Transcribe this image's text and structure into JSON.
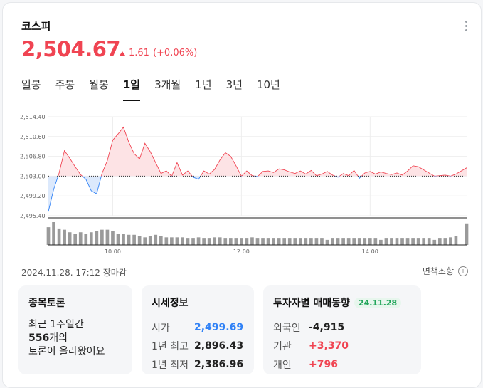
{
  "header": {
    "title": "코스피"
  },
  "quote": {
    "price": "2,504.67",
    "change": "1.61",
    "change_pct": "(+0.06%)"
  },
  "tabs": [
    "일봉",
    "주봉",
    "월봉",
    "1일",
    "3개월",
    "1년",
    "3년",
    "10년"
  ],
  "active_tab": "1일",
  "chart_data": {
    "type": "line",
    "y_ticks": [
      "2,514.40",
      "2,510.60",
      "2,506.80",
      "2,503.00",
      "2,499.20",
      "2,495.40"
    ],
    "x_ticks": [
      "10:00",
      "12:00",
      "14:00"
    ],
    "ylim": [
      2495.4,
      2514.4
    ],
    "reference": 2503.0,
    "x": [
      "09:00",
      "09:05",
      "09:10",
      "09:15",
      "09:20",
      "09:25",
      "09:30",
      "09:35",
      "09:40",
      "09:45",
      "09:50",
      "09:55",
      "10:00",
      "10:05",
      "10:10",
      "10:15",
      "10:20",
      "10:25",
      "10:30",
      "10:35",
      "10:40",
      "10:45",
      "10:50",
      "10:55",
      "11:00",
      "11:05",
      "11:10",
      "11:15",
      "11:20",
      "11:25",
      "11:30",
      "11:35",
      "11:40",
      "11:45",
      "11:50",
      "11:55",
      "12:00",
      "12:05",
      "12:10",
      "12:15",
      "12:20",
      "12:25",
      "12:30",
      "12:35",
      "12:40",
      "12:45",
      "12:50",
      "12:55",
      "13:00",
      "13:05",
      "13:10",
      "13:15",
      "13:20",
      "13:25",
      "13:30",
      "13:35",
      "13:40",
      "13:45",
      "13:50",
      "13:55",
      "14:00",
      "14:05",
      "14:10",
      "14:15",
      "14:20",
      "14:25",
      "14:30",
      "14:35",
      "14:40",
      "14:45",
      "14:50",
      "14:55",
      "15:00",
      "15:05",
      "15:10",
      "15:15",
      "15:20",
      "15:30"
    ],
    "values": [
      2496.2,
      2500.5,
      2503.6,
      2507.9,
      2506.4,
      2504.8,
      2503.3,
      2502.4,
      2500.2,
      2499.6,
      2503.5,
      2506.0,
      2509.9,
      2511.1,
      2512.4,
      2509.5,
      2507.3,
      2506.3,
      2509.3,
      2507.7,
      2505.6,
      2503.5,
      2504.0,
      2503.0,
      2505.6,
      2503.2,
      2504.0,
      2502.8,
      2502.4,
      2504.0,
      2503.4,
      2504.3,
      2506.1,
      2507.5,
      2506.8,
      2505.0,
      2503.0,
      2504.0,
      2503.1,
      2502.9,
      2503.9,
      2504.0,
      2503.7,
      2504.4,
      2504.2,
      2503.8,
      2503.5,
      2504.0,
      2503.4,
      2504.1,
      2503.1,
      2503.4,
      2503.9,
      2503.2,
      2502.8,
      2503.5,
      2503.1,
      2504.1,
      2502.6,
      2503.6,
      2503.9,
      2503.4,
      2503.8,
      2503.5,
      2503.3,
      2503.6,
      2503.2,
      2504.0,
      2505.0,
      2504.8,
      2504.2,
      2503.6,
      2503.0,
      2503.1,
      2503.2,
      2503.0,
      2503.4,
      2504.6
    ],
    "volume": [
      14,
      18,
      13,
      12,
      10,
      9,
      10,
      9,
      10,
      11,
      12,
      12,
      11,
      9,
      9,
      8,
      8,
      7,
      6,
      7,
      8,
      7,
      6,
      6,
      6,
      6,
      5,
      5,
      6,
      5,
      5,
      6,
      6,
      5,
      5,
      5,
      5,
      5,
      6,
      5,
      5,
      5,
      5,
      5,
      5,
      5,
      5,
      5,
      5,
      5,
      5,
      5,
      4,
      5,
      5,
      5,
      5,
      5,
      5,
      5,
      5,
      5,
      4,
      5,
      5,
      5,
      5,
      5,
      5,
      5,
      5,
      5,
      4,
      5,
      5,
      6,
      7,
      17
    ],
    "colors": {
      "up": "#f04452",
      "down": "#3182f6",
      "volume": "#9a9a9a"
    }
  },
  "meta": {
    "timestamp": "2024.11.28. 17:12 장마감",
    "disclaimer": "면책조항",
    "info_icon": "ⓘ"
  },
  "discussion": {
    "title": "종목토론",
    "line1": "최근 1주일간",
    "count": "556",
    "unit": "개의",
    "line3": "토론이 올라왔어요"
  },
  "market_info": {
    "title": "시세정보",
    "rows": [
      {
        "label": "시가",
        "value": "2,499.69"
      },
      {
        "label": "1년 최고",
        "value": "2,896.43"
      },
      {
        "label": "1년 최저",
        "value": "2,386.96"
      }
    ]
  },
  "investor": {
    "title": "투자자별 매매동향",
    "date": "24.11.28",
    "rows": [
      {
        "label": "외국인",
        "value": "-4,915"
      },
      {
        "label": "기관",
        "value": "+3,370"
      },
      {
        "label": "개인",
        "value": "+796"
      }
    ]
  }
}
